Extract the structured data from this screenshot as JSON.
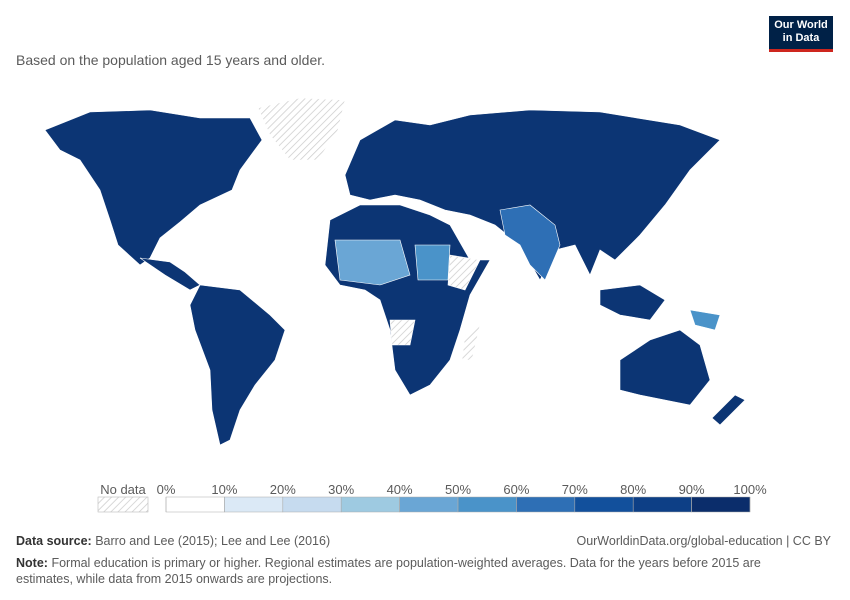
{
  "subtitle": "Based on the population aged 15 years and older.",
  "logo": {
    "line1": "Our World",
    "line2": "in Data"
  },
  "legend": {
    "no_data": "No data",
    "ticks": [
      {
        "value": 0,
        "label": "0%"
      },
      {
        "value": 10,
        "label": "10%"
      },
      {
        "value": 20,
        "label": "20%"
      },
      {
        "value": 30,
        "label": "30%"
      },
      {
        "value": 40,
        "label": "40%"
      },
      {
        "value": 50,
        "label": "50%"
      },
      {
        "value": 60,
        "label": "60%"
      },
      {
        "value": 70,
        "label": "70%"
      },
      {
        "value": 80,
        "label": "80%"
      },
      {
        "value": 90,
        "label": "90%"
      },
      {
        "value": 100,
        "label": "100%"
      }
    ],
    "colors": [
      "#ffffff",
      "#dbe9f6",
      "#c6dbef",
      "#9ecae1",
      "#6aa6d5",
      "#4a93c9",
      "#2e6fb5",
      "#12509c",
      "#0d3f86",
      "#0b2d6b"
    ]
  },
  "footer": {
    "source_label": "Data source:",
    "source": "Barro and Lee (2015); Lee and Lee (2016)",
    "url": "OurWorldinData.org/global-education | CC BY",
    "note_label": "Note:",
    "note": "Formal education is primary or higher. Regional estimates are population-weighted averages. Data for the years before 2015 are estimates, while data from 2015 onwards are projections."
  }
}
